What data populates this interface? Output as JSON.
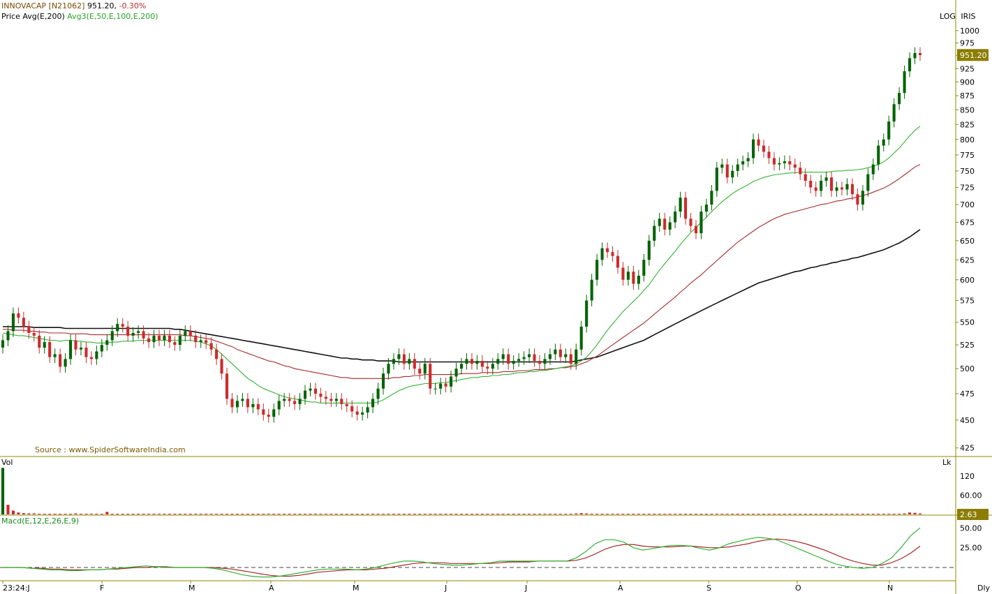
{
  "header": {
    "symbol": "INNOVACAP [N21062]",
    "price": "951.20,",
    "change": "-0.30%",
    "line2_price": "Price",
    "avg_single": "Avg(E,200)",
    "avg_triple": "Avg3(E,50,E,100,E,200)",
    "scale_mode": "LOG",
    "style_mode": "IRIS"
  },
  "source_text": "Source : www.SpiderSoftwareIndia.com",
  "volume_panel": {
    "label": "Vol",
    "unit": "Lk",
    "last_value": "2.63"
  },
  "macd_panel": {
    "label": "Macd(E,12,E,26,E,9)",
    "interval": "Dly"
  },
  "colors": {
    "up": "#006400",
    "down": "#cc2b2b",
    "ema50": "#34b234",
    "ema100": "#a52a2a",
    "ema200": "#111111",
    "tag": "#8b7d00"
  },
  "chart_data": {
    "type": "candlestick",
    "price_axis": {
      "scale": "log",
      "ylim": [
        420,
        1020
      ],
      "ticks": [
        425,
        450,
        475,
        500,
        525,
        550,
        575,
        600,
        625,
        650,
        675,
        700,
        725,
        750,
        775,
        800,
        825,
        850,
        875,
        900,
        925,
        950,
        975,
        1000
      ],
      "last_price": "951.20"
    },
    "x_ticks": [
      "23:24:J",
      "F",
      "M",
      "A",
      "M",
      "J",
      "J",
      "A",
      "S",
      "O",
      "N"
    ],
    "closes": [
      530,
      540,
      560,
      555,
      545,
      538,
      535,
      522,
      528,
      512,
      515,
      502,
      510,
      530,
      520,
      522,
      512,
      510,
      518,
      525,
      530,
      540,
      548,
      545,
      535,
      538,
      540,
      532,
      528,
      535,
      530,
      535,
      528,
      525,
      535,
      540,
      535,
      528,
      530,
      527,
      520,
      510,
      495,
      470,
      462,
      468,
      470,
      462,
      465,
      460,
      455,
      453,
      460,
      468,
      470,
      468,
      465,
      470,
      478,
      480,
      475,
      472,
      470,
      468,
      470,
      465,
      463,
      458,
      455,
      457,
      462,
      470,
      480,
      495,
      505,
      510,
      515,
      505,
      510,
      500,
      495,
      505,
      480,
      480,
      485,
      482,
      492,
      500,
      505,
      510,
      505,
      508,
      502,
      500,
      505,
      510,
      515,
      505,
      508,
      510,
      512,
      515,
      508,
      505,
      510,
      515,
      520,
      512,
      515,
      505,
      520,
      545,
      575,
      600,
      625,
      640,
      635,
      630,
      615,
      600,
      610,
      595,
      605,
      625,
      650,
      670,
      680,
      665,
      675,
      690,
      710,
      680,
      670,
      660,
      690,
      700,
      720,
      755,
      760,
      740,
      750,
      760,
      765,
      770,
      800,
      790,
      780,
      770,
      760,
      762,
      765,
      760,
      755,
      745,
      735,
      725,
      720,
      735,
      740,
      720,
      725,
      722,
      730,
      715,
      700,
      720,
      745,
      760,
      790,
      800,
      830,
      860,
      880,
      920,
      945,
      955,
      951
    ],
    "ema50": [
      538,
      537,
      536,
      535,
      535,
      534,
      533,
      532,
      531,
      530,
      530,
      529,
      530,
      530,
      529,
      529,
      528,
      528,
      527,
      527,
      527,
      528,
      528,
      529,
      529,
      529,
      530,
      530,
      530,
      530,
      530,
      530,
      530,
      530,
      530,
      530,
      530,
      529,
      528,
      526,
      524,
      520,
      515,
      510,
      505,
      500,
      495,
      490,
      487,
      483,
      480,
      478,
      476,
      474,
      472,
      471,
      470,
      469,
      468,
      467,
      467,
      466,
      466,
      466,
      466,
      466,
      466,
      466,
      466,
      466,
      466,
      466,
      467,
      469,
      472,
      475,
      478,
      480,
      482,
      483,
      484,
      485,
      485,
      485,
      486,
      486,
      487,
      488,
      489,
      490,
      491,
      491,
      492,
      492,
      493,
      493,
      494,
      494,
      495,
      496,
      496,
      497,
      497,
      498,
      498,
      499,
      500,
      501,
      502,
      503,
      505,
      508,
      512,
      518,
      525,
      533,
      541,
      548,
      555,
      562,
      568,
      574,
      580,
      587,
      594,
      603,
      612,
      620,
      628,
      636,
      645,
      653,
      661,
      668,
      675,
      682,
      690,
      697,
      704,
      710,
      716,
      721,
      725,
      729,
      734,
      737,
      740,
      742,
      744,
      745,
      746,
      747,
      747,
      748,
      748,
      748,
      748,
      748,
      748,
      749,
      750,
      750,
      751,
      751,
      752,
      753,
      755,
      757,
      760,
      764,
      770,
      778,
      786,
      796,
      806,
      815,
      822
    ],
    "ema100": [
      542,
      542,
      541,
      541,
      541,
      540,
      540,
      539,
      539,
      538,
      538,
      538,
      538,
      537,
      537,
      537,
      537,
      536,
      536,
      536,
      536,
      536,
      536,
      536,
      536,
      536,
      536,
      536,
      536,
      536,
      536,
      536,
      536,
      536,
      536,
      535,
      535,
      534,
      533,
      532,
      531,
      529,
      527,
      525,
      523,
      520,
      518,
      516,
      514,
      512,
      510,
      508,
      507,
      505,
      503,
      502,
      500,
      499,
      498,
      497,
      496,
      495,
      494,
      493,
      492,
      491,
      491,
      490,
      490,
      490,
      490,
      490,
      490,
      490,
      490,
      491,
      491,
      492,
      492,
      493,
      493,
      494,
      494,
      494,
      494,
      494,
      494,
      494,
      495,
      495,
      495,
      495,
      496,
      496,
      496,
      496,
      497,
      497,
      497,
      498,
      498,
      498,
      499,
      499,
      499,
      500,
      500,
      501,
      501,
      502,
      503,
      505,
      507,
      510,
      513,
      517,
      521,
      525,
      529,
      533,
      537,
      541,
      545,
      549,
      554,
      559,
      564,
      569,
      574,
      579,
      585,
      590,
      596,
      601,
      606,
      612,
      618,
      624,
      630,
      636,
      642,
      648,
      653,
      658,
      663,
      668,
      672,
      676,
      680,
      683,
      686,
      688,
      690,
      692,
      694,
      696,
      698,
      700,
      701,
      703,
      705,
      706,
      708,
      709,
      711,
      713,
      715,
      718,
      721,
      724,
      728,
      733,
      738,
      744,
      750,
      756,
      760
    ],
    "ema200": [
      545,
      545,
      545,
      545,
      545,
      545,
      544,
      544,
      544,
      544,
      544,
      544,
      543,
      543,
      543,
      543,
      543,
      543,
      543,
      543,
      543,
      543,
      543,
      543,
      543,
      543,
      543,
      543,
      543,
      543,
      543,
      543,
      543,
      542,
      542,
      541,
      540,
      539,
      538,
      537,
      536,
      535,
      534,
      533,
      532,
      531,
      530,
      529,
      528,
      527,
      526,
      525,
      524,
      523,
      522,
      521,
      520,
      519,
      518,
      517,
      516,
      515,
      514,
      513,
      512,
      511,
      511,
      510,
      510,
      509,
      509,
      509,
      508,
      508,
      508,
      508,
      507,
      507,
      507,
      507,
      507,
      507,
      507,
      507,
      507,
      507,
      507,
      507,
      507,
      507,
      507,
      507,
      507,
      507,
      507,
      507,
      507,
      507,
      507,
      507,
      507,
      507,
      507,
      507,
      507,
      507,
      507,
      507,
      507,
      507,
      508,
      509,
      510,
      511,
      512,
      514,
      516,
      518,
      520,
      522,
      524,
      526,
      528,
      530,
      533,
      536,
      539,
      542,
      545,
      548,
      551,
      554,
      557,
      560,
      563,
      566,
      569,
      572,
      575,
      578,
      581,
      584,
      587,
      590,
      593,
      596,
      598,
      600,
      602,
      604,
      606,
      608,
      610,
      611,
      613,
      615,
      616,
      618,
      619,
      621,
      622,
      624,
      625,
      627,
      628,
      630,
      632,
      634,
      636,
      638,
      641,
      644,
      647,
      651,
      655,
      660,
      665
    ],
    "volume": {
      "ylim": [
        0,
        150
      ],
      "ticks": [
        60.0,
        120
      ],
      "last": 2.63,
      "bars": [
        145,
        30,
        12,
        6,
        4,
        3,
        3,
        2,
        2,
        2,
        2,
        2,
        2,
        2,
        3,
        2,
        2,
        2,
        2,
        2,
        8,
        2,
        2,
        2,
        2,
        2,
        2,
        2,
        2,
        2,
        2,
        2,
        2,
        2,
        2,
        2,
        2,
        2,
        2,
        2,
        2,
        2,
        2,
        2,
        2,
        2,
        2,
        2,
        2,
        2,
        2,
        2,
        2,
        2,
        2,
        2,
        2,
        2,
        2,
        2,
        2,
        2,
        2,
        2,
        2,
        2,
        2,
        2,
        2,
        2,
        2,
        2,
        2,
        2,
        2,
        2,
        2,
        2,
        2,
        2,
        2,
        2,
        2,
        2,
        2,
        2,
        2,
        2,
        2,
        2,
        2,
        2,
        2,
        2,
        2,
        2,
        2,
        2,
        2,
        2,
        2,
        2,
        2,
        2,
        2,
        2,
        2,
        2,
        2,
        2,
        3,
        4,
        3,
        2,
        2,
        2,
        2,
        2,
        2,
        2,
        2,
        2,
        2,
        2,
        2,
        2,
        2,
        2,
        2,
        2,
        2,
        2,
        2,
        2,
        2,
        2,
        2,
        2,
        2,
        2,
        2,
        2,
        2,
        2,
        2,
        2,
        2,
        2,
        2,
        2,
        2,
        2,
        2,
        2,
        2,
        2,
        2,
        2,
        2,
        2,
        2,
        2,
        2,
        2,
        2,
        2,
        2,
        2,
        2,
        2,
        2,
        2,
        2,
        3,
        6,
        5,
        3
      ]
    },
    "macd": {
      "ylim": [
        -15,
        60
      ],
      "ticks": [
        25.0,
        50.0
      ],
      "macd_line": [
        0,
        0,
        0,
        -1,
        -2,
        -3,
        -3,
        -4,
        -4,
        -3,
        -3,
        -2,
        -1,
        0,
        1,
        2,
        1,
        0,
        0,
        0,
        0,
        0,
        -1,
        -3,
        -6,
        -9,
        -11,
        -12,
        -12,
        -11,
        -9,
        -7,
        -5,
        -3,
        -2,
        -2,
        -2,
        -3,
        -2,
        0,
        3,
        6,
        8,
        8,
        7,
        5,
        4,
        3,
        3,
        4,
        5,
        6,
        8,
        8,
        8,
        8,
        8,
        8,
        8,
        8,
        12,
        20,
        30,
        35,
        35,
        32,
        25,
        22,
        24,
        26,
        28,
        28,
        27,
        24,
        22,
        25,
        30,
        33,
        36,
        38,
        37,
        35,
        30,
        25,
        20,
        15,
        10,
        5,
        2,
        0,
        -1,
        0,
        5,
        12,
        25,
        40,
        50
      ],
      "signal_line": [
        0,
        0,
        0,
        -1,
        -1,
        -2,
        -2,
        -3,
        -3,
        -3,
        -3,
        -2,
        -2,
        -1,
        0,
        0,
        1,
        1,
        0,
        0,
        0,
        0,
        0,
        -1,
        -2,
        -4,
        -6,
        -8,
        -10,
        -11,
        -11,
        -10,
        -8,
        -6,
        -5,
        -4,
        -3,
        -3,
        -3,
        -2,
        -1,
        1,
        3,
        5,
        6,
        6,
        6,
        5,
        5,
        5,
        5,
        5,
        6,
        7,
        7,
        7,
        8,
        8,
        8,
        8,
        9,
        12,
        17,
        23,
        27,
        29,
        29,
        27,
        26,
        26,
        26,
        27,
        27,
        26,
        25,
        25,
        26,
        28,
        30,
        33,
        35,
        36,
        35,
        33,
        30,
        26,
        22,
        17,
        12,
        8,
        5,
        3,
        3,
        6,
        11,
        18,
        27
      ]
    }
  }
}
